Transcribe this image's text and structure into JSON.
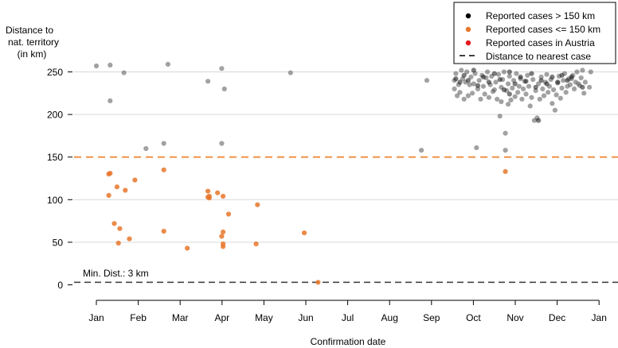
{
  "chart_data": {
    "type": "scatter",
    "ylabel_lines": [
      "Distance to",
      "nat. territory",
      "(in km)"
    ],
    "xlabel": "Confirmation date",
    "x_ticks": [
      "Jan",
      "Feb",
      "Mar",
      "Apr",
      "May",
      "Jun",
      "Jul",
      "Aug",
      "Sep",
      "Oct",
      "Nov",
      "Dec",
      "Jan"
    ],
    "y_ticks": [
      "0",
      "50",
      "100",
      "150",
      "200",
      "250"
    ],
    "ylim": [
      0,
      260
    ],
    "grid": "horizontal",
    "legend_position": "top-right",
    "threshold_line": {
      "y": 150,
      "color": "#f08c3c"
    },
    "nearest_line": {
      "y": 3,
      "label": "Min. Dist.: 3 km",
      "color": "#444444"
    },
    "legend": [
      {
        "label": "Reported cases > 150 km",
        "kind": "point",
        "color": "#000000"
      },
      {
        "label": "Reported cases <= 150 km",
        "kind": "point",
        "color": "#e8772a"
      },
      {
        "label": "Reported cases in Austria",
        "kind": "point",
        "color": "#e41a1c"
      },
      {
        "label": "Distance to nearest case",
        "kind": "dash",
        "color": "#000000"
      }
    ],
    "series": [
      {
        "name": "Reported cases > 150 km",
        "color": "#555555",
        "points": [
          [
            "2021-01-01",
            257
          ],
          [
            "2021-01-11",
            258
          ],
          [
            "2021-01-11",
            216
          ],
          [
            "2021-01-21",
            249
          ],
          [
            "2021-02-06",
            160
          ],
          [
            "2021-02-19",
            166
          ],
          [
            "2021-02-22",
            259
          ],
          [
            "2021-03-23",
            239
          ],
          [
            "2021-04-02",
            254
          ],
          [
            "2021-04-04",
            230
          ],
          [
            "2021-04-02",
            166
          ],
          [
            "2021-05-22",
            249
          ],
          [
            "2021-08-25",
            158
          ],
          [
            "2021-08-29",
            240
          ],
          [
            "2021-10-04",
            161
          ],
          [
            "2021-10-25",
            158
          ],
          [
            "2021-10-25",
            178
          ],
          [
            "2021-10-21",
            198
          ],
          [
            "2021-11-15",
            193
          ],
          [
            "2021-11-17",
            196
          ],
          [
            "2021-11-30",
            205
          ],
          [
            "2021-10-27",
            212
          ],
          [
            "2021-10-22",
            215
          ],
          [
            "2021-11-12",
            210
          ],
          [
            "2021-11-06",
            218
          ],
          [
            "2021-11-28",
            213
          ],
          [
            "2021-12-12",
            242
          ],
          [
            "2021-12-17",
            236
          ],
          [
            "2021-12-22",
            238
          ],
          [
            "2021-12-26",
            250
          ],
          [
            "2021-12-25",
            232
          ],
          [
            "2021-12-21",
            225
          ],
          [
            "2021-09-20",
            222
          ],
          [
            "2021-09-22",
            226
          ],
          [
            "2021-09-25",
            218
          ],
          [
            "2021-09-18",
            230
          ],
          [
            "2021-09-28",
            222
          ],
          [
            "2021-10-01",
            225
          ],
          [
            "2021-10-07",
            218
          ],
          [
            "2021-10-10",
            224
          ],
          [
            "2021-10-13",
            220
          ],
          [
            "2021-10-16",
            227
          ],
          [
            "2021-10-19",
            218
          ],
          [
            "2021-10-29",
            217
          ],
          [
            "2021-11-01",
            221
          ],
          [
            "2021-11-03",
            226
          ],
          [
            "2021-11-09",
            224
          ],
          [
            "2021-11-13",
            220
          ],
          [
            "2021-11-19",
            218
          ],
          [
            "2021-11-22",
            222
          ],
          [
            "2021-11-25",
            226
          ],
          [
            "2021-12-01",
            223
          ],
          [
            "2021-12-04",
            219
          ],
          [
            "2021-12-08",
            226
          ],
          [
            "2021-09-18",
            240
          ],
          [
            "2021-09-19",
            248
          ],
          [
            "2021-09-21",
            235
          ],
          [
            "2021-09-23",
            252
          ],
          [
            "2021-09-24",
            242
          ],
          [
            "2021-09-26",
            238
          ],
          [
            "2021-09-27",
            250
          ],
          [
            "2021-09-29",
            235
          ],
          [
            "2021-09-30",
            244
          ],
          [
            "2021-10-02",
            236
          ],
          [
            "2021-10-03",
            248
          ],
          [
            "2021-10-05",
            230
          ],
          [
            "2021-10-06",
            240
          ],
          [
            "2021-10-08",
            246
          ],
          [
            "2021-10-09",
            233
          ],
          [
            "2021-10-11",
            243
          ],
          [
            "2021-10-12",
            250
          ],
          [
            "2021-10-14",
            235
          ],
          [
            "2021-10-15",
            245
          ],
          [
            "2021-10-17",
            229
          ],
          [
            "2021-10-18",
            238
          ],
          [
            "2021-10-20",
            247
          ],
          [
            "2021-10-22",
            232
          ],
          [
            "2021-10-23",
            241
          ],
          [
            "2021-10-24",
            250
          ],
          [
            "2021-10-26",
            228
          ],
          [
            "2021-10-27",
            236
          ],
          [
            "2021-10-28",
            245
          ],
          [
            "2021-10-30",
            231
          ],
          [
            "2021-10-31",
            240
          ],
          [
            "2021-11-02",
            248
          ],
          [
            "2021-11-04",
            233
          ],
          [
            "2021-11-05",
            242
          ],
          [
            "2021-11-07",
            230
          ],
          [
            "2021-11-08",
            239
          ],
          [
            "2021-11-10",
            246
          ],
          [
            "2021-11-11",
            233
          ],
          [
            "2021-11-14",
            241
          ],
          [
            "2021-11-16",
            228
          ],
          [
            "2021-11-18",
            236
          ],
          [
            "2021-11-20",
            244
          ],
          [
            "2021-11-21",
            230
          ],
          [
            "2021-11-23",
            238
          ],
          [
            "2021-11-24",
            247
          ],
          [
            "2021-11-26",
            233
          ],
          [
            "2021-11-27",
            241
          ],
          [
            "2021-11-29",
            229
          ],
          [
            "2021-12-02",
            237
          ],
          [
            "2021-12-03",
            245
          ],
          [
            "2021-12-05",
            231
          ],
          [
            "2021-12-06",
            240
          ],
          [
            "2021-12-07",
            248
          ],
          [
            "2021-12-09",
            233
          ],
          [
            "2021-12-10",
            242
          ],
          [
            "2021-12-11",
            235
          ],
          [
            "2021-12-13",
            246
          ],
          [
            "2021-12-14",
            230
          ],
          [
            "2021-12-15",
            238
          ],
          [
            "2021-12-16",
            250
          ],
          [
            "2021-12-18",
            234
          ],
          [
            "2021-12-19",
            243
          ],
          [
            "2021-12-20",
            252
          ]
        ]
      },
      {
        "name": "Reported cases > 150 km (dark)",
        "color": "#111111",
        "points": [
          [
            "2021-09-19",
            242
          ],
          [
            "2021-09-22",
            238
          ],
          [
            "2021-09-25",
            246
          ],
          [
            "2021-09-28",
            240
          ],
          [
            "2021-10-02",
            252
          ],
          [
            "2021-10-05",
            234
          ],
          [
            "2021-10-09",
            244
          ],
          [
            "2021-10-13",
            238
          ],
          [
            "2021-10-17",
            248
          ],
          [
            "2021-10-21",
            241
          ],
          [
            "2021-10-24",
            229
          ],
          [
            "2021-10-28",
            250
          ],
          [
            "2021-11-01",
            236
          ],
          [
            "2021-11-05",
            244
          ],
          [
            "2021-11-09",
            239
          ],
          [
            "2021-11-13",
            248
          ],
          [
            "2021-11-16",
            232
          ],
          [
            "2021-11-20",
            240
          ],
          [
            "2021-11-24",
            236
          ],
          [
            "2021-11-28",
            244
          ],
          [
            "2021-12-02",
            238
          ],
          [
            "2021-12-05",
            246
          ],
          [
            "2021-12-09",
            240
          ],
          [
            "2021-12-12",
            244
          ],
          [
            "2021-11-18",
            193
          ],
          [
            "2021-10-28",
            224
          ],
          [
            "2021-12-20",
            232
          ]
        ]
      },
      {
        "name": "Reported cases <= 150 km",
        "color": "#e8772a",
        "points": [
          [
            "2021-01-10",
            130
          ],
          [
            "2021-01-11",
            131
          ],
          [
            "2021-01-10",
            105
          ],
          [
            "2021-01-14",
            72
          ],
          [
            "2021-01-16",
            115
          ],
          [
            "2021-01-17",
            49
          ],
          [
            "2021-01-18",
            66
          ],
          [
            "2021-01-22",
            111
          ],
          [
            "2021-01-25",
            54
          ],
          [
            "2021-01-29",
            123
          ],
          [
            "2021-02-19",
            135
          ],
          [
            "2021-02-19",
            63
          ],
          [
            "2021-03-08",
            43
          ],
          [
            "2021-03-23",
            110
          ],
          [
            "2021-03-23",
            103
          ],
          [
            "2021-03-24",
            102
          ],
          [
            "2021-03-24",
            104
          ],
          [
            "2021-03-30",
            108
          ],
          [
            "2021-04-02",
            57
          ],
          [
            "2021-04-03",
            62
          ],
          [
            "2021-04-03",
            48
          ],
          [
            "2021-04-03",
            45
          ],
          [
            "2021-04-03",
            104
          ],
          [
            "2021-04-07",
            83
          ],
          [
            "2021-04-27",
            48
          ],
          [
            "2021-04-28",
            94
          ],
          [
            "2021-06-01",
            61
          ],
          [
            "2021-06-11",
            3
          ],
          [
            "2021-10-25",
            133
          ]
        ]
      }
    ]
  }
}
